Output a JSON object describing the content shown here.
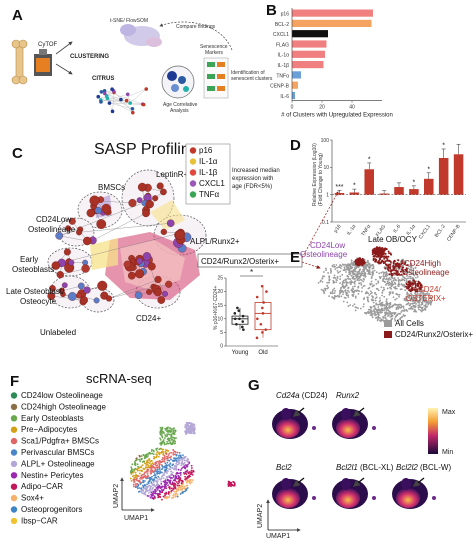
{
  "panels": {
    "a": "A",
    "b": "B",
    "c": "C",
    "d": "D",
    "e": "E",
    "f": "F",
    "g": "G"
  },
  "panel_a": {
    "cytof": "CyTOF",
    "clustering": "CLUSTERING",
    "tsne": "t-SNE/\nFlowSOM",
    "citrus": "CITRUS",
    "compare": "Compare findings",
    "senescence_markers": "Senescence\nMarkers",
    "age_analysis": "Age Correlative\nAnalysis",
    "identification": "Identification of\nsenescent clusters"
  },
  "panel_c": {
    "title": "SASP Profiling",
    "legend": [
      {
        "label": "p16",
        "color": "#c0392b"
      },
      {
        "label": "IL-1α",
        "color": "#e8c13a"
      },
      {
        "label": "IL-1β",
        "color": "#e0493c"
      },
      {
        "label": "CXCL1",
        "color": "#9b59b6"
      },
      {
        "label": "TNFα",
        "color": "#3aa655"
      }
    ],
    "note": "Increased median\nexpression with\nage (FDR<5%)",
    "labels": [
      "BMSCs",
      "LeptinR+",
      "CD24Low\nOsteolineage",
      "ALPL/Runx2+",
      "Early\nOsteoblasts",
      "Late Osteoblast/\nOsteocyte",
      "CD24/Runx2/Osterix+",
      "Unlabeled",
      "CD24+"
    ],
    "inset_ylabel": "% p16+Ki67-CD24+",
    "inset_groups": [
      "Young",
      "Old"
    ],
    "inset_sig": "*"
  },
  "panel_e": {
    "labels": [
      "CD24Low\nOsteolineage",
      "Late OB/OCY",
      "CD24High\nOsteolineage",
      "CD24/\nOSTERIX+"
    ],
    "legend": [
      "All Cells",
      "CD24/Runx2/Osterix+"
    ],
    "legend_colors": [
      "#9a9a9a",
      "#8b1a1a"
    ]
  },
  "panel_f": {
    "title": "scRNA-seq",
    "legend": [
      {
        "label": "CD24low Osteolineage",
        "color": "#2e8b57"
      },
      {
        "label": "CD24high Osteolineage",
        "color": "#8b6f47"
      },
      {
        "label": "Early Osteoblasts",
        "color": "#6aa84f"
      },
      {
        "label": "Pre−Adipocytes",
        "color": "#d4a017"
      },
      {
        "label": "Sca1/Pdgfra+ BMSCs",
        "color": "#e06666"
      },
      {
        "label": "Perivascular BMSCs",
        "color": "#4a86c5"
      },
      {
        "label": "ALPL+ Osteolineage",
        "color": "#b4a7d6"
      },
      {
        "label": "Nestin+ Pericytes",
        "color": "#9c27b0"
      },
      {
        "label": "Adipo−CAR",
        "color": "#c2185b"
      },
      {
        "label": "Sox4+",
        "color": "#f6b26b"
      },
      {
        "label": "Osteoprogenitors",
        "color": "#3d85c6"
      },
      {
        "label": "Ibsp−CAR",
        "color": "#f1c232"
      }
    ],
    "xaxis": "UMAP1",
    "yaxis": "UMAP2"
  },
  "panel_g": {
    "genes": [
      {
        "italic": "Cd24a",
        "plain": " (CD24)"
      },
      {
        "italic": "Runx2",
        "plain": ""
      },
      {
        "italic": "Bcl2",
        "plain": ""
      },
      {
        "italic": "Bcl2l1",
        "plain": " (BCL-XL)"
      },
      {
        "italic": "Bcl2l2",
        "plain": " (BCL-W)"
      }
    ],
    "scale_max": "Max",
    "scale_min": "Min",
    "xaxis": "UMAP1",
    "yaxis": "UMAP2"
  },
  "chart_data": [
    {
      "type": "bar",
      "panel": "B",
      "orientation": "horizontal",
      "categories": [
        "p16",
        "BCL-2",
        "CXCL1",
        "FLAG",
        "IL-1α",
        "IL-1β",
        "TNFα",
        "CENP-B",
        "IL-6"
      ],
      "values": [
        54,
        53,
        24,
        23,
        22,
        21,
        6,
        4,
        2
      ],
      "colors": [
        "#f08080",
        "#f4a460",
        "#111111",
        "#f08080",
        "#f08080",
        "#f08080",
        "#6a9fd8",
        "#f4a460",
        "#6a9fd8"
      ],
      "xlabel": "# of Clusters with Upregulated Expression",
      "xlim": [
        0,
        60
      ],
      "xticks": [
        0,
        20,
        40
      ]
    },
    {
      "type": "bar",
      "panel": "D",
      "categories": [
        "p16",
        "IL-1α",
        "TNFα",
        "FLAG",
        "IL-6",
        "IL-1α",
        "CXCL1",
        "BCL-2",
        "CENP-B"
      ],
      "values": [
        1.15,
        1.2,
        8.5,
        1.1,
        1.9,
        1.6,
        3.8,
        22,
        30
      ],
      "errors_up": [
        0.3,
        0.4,
        6,
        0.3,
        0.8,
        0.5,
        2.5,
        25,
        40
      ],
      "significance": [
        "***",
        "*",
        "*",
        "",
        "",
        "*",
        "*",
        "*",
        ""
      ],
      "ylabel": "Relative Expression (Log10)\n(Fold Change to Young)",
      "yscale": "log",
      "ylim": [
        0.1,
        100
      ],
      "yticks": [
        0.1,
        1,
        10,
        100
      ],
      "reference_line": 1,
      "color": "#c0392b"
    },
    {
      "type": "box",
      "panel": "C-inset",
      "categories": [
        "Young",
        "Old"
      ],
      "ylim": [
        0,
        25
      ],
      "yticks": [
        0,
        5,
        10,
        15,
        20,
        25
      ],
      "ylabel": "% p16+Ki67-CD24+",
      "young": [
        6,
        7,
        8,
        9,
        10,
        10,
        11,
        12,
        13,
        14
      ],
      "old": [
        3,
        5,
        6,
        8,
        10,
        12,
        14,
        16,
        18,
        20,
        22
      ]
    }
  ]
}
